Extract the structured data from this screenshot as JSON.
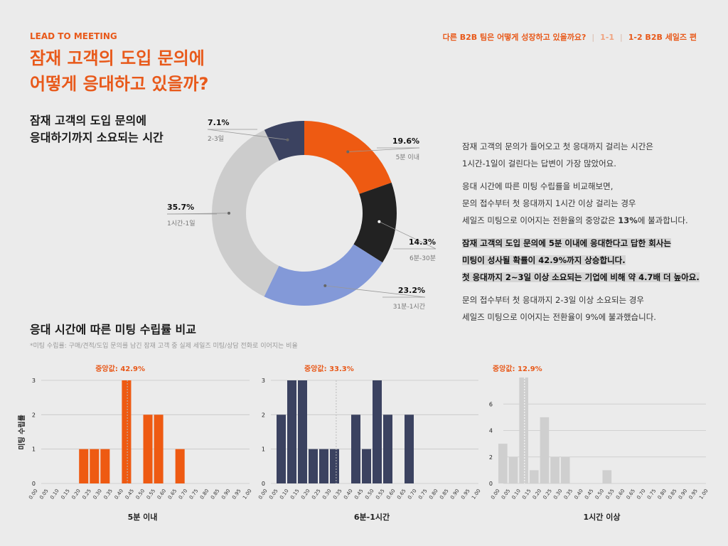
{
  "header": {
    "eyebrow": "LEAD TO MEETING",
    "nav": {
      "question": "다른 B2B 팀은 어떻게 성장하고 있을까요?",
      "part1": "1-1",
      "part2": "1-2 B2B 세일즈 편"
    },
    "title_line1": "잠재 고객의 도입 문의에",
    "title_line2": "어떻게 응대하고 있을까?"
  },
  "donut_title_line1": "잠재 고객의 도입 문의에",
  "donut_title_line2": "응대하기까지 소요되는 시간",
  "description": {
    "p1": [
      "잠재 고객의 문의가 들어오고 첫 응대까지 걸리는 시간은",
      "1시간-1일이 걸린다는 답변이 가장 많았어요."
    ],
    "p2": [
      "응대 시간에 따른 미팅 수립률을 비교해보면,",
      "문의 접수부터 첫 응대까지 1시간 이상 걸리는 경우"
    ],
    "p2_last_pre": "세일즈 미팅으로 이어지는 전환율의 중앙값은 ",
    "p2_last_bold": "13%",
    "p2_last_post": "에 불과합니다.",
    "highlight": [
      "잠재 고객의 도입 문의에 5분 이내에 응대한다고 답한 회사는",
      "미팅이 성사될 확률이 42.9%까지 상승합니다.",
      "첫 응대까지 2~3일 이상 소요되는 기업에 비해 약 4.7배 더 높아요."
    ],
    "p4": [
      "문의 접수부터 첫 응대까지 2-3일 이상 소요되는 경우",
      "세일즈 미팅으로 이어지는 전환율이 9%에 불과했습니다."
    ]
  },
  "section_title": "응대 시간에 따른 미팅 수립률 비교",
  "footnote": "*미팅 수립률: 구매/견적/도입 문의를 남긴 잠재 고객 중 실제 세일즈 미팅/상담 전화로 이어지는 비율",
  "chart_data": [
    {
      "type": "pie",
      "donut": true,
      "slices": [
        {
          "label": "5분 이내",
          "value": 19.6,
          "display": "19.6%",
          "color": "#ee5a12"
        },
        {
          "label": "6분-30분",
          "value": 14.3,
          "display": "14.3%",
          "color": "#222222"
        },
        {
          "label": "31분-1시간",
          "value": 23.2,
          "display": "23.2%",
          "color": "#8399d8"
        },
        {
          "label": "1시간-1일",
          "value": 35.7,
          "display": "35.7%",
          "color": "#cccccc"
        },
        {
          "label": "2-3일",
          "value": 7.1,
          "display": "7.1%",
          "color": "#3b4260"
        }
      ]
    },
    {
      "type": "bar",
      "histogram": true,
      "xlabel": "5분 이내",
      "ylabel": "미팅 수립률",
      "color": "#ee5a12",
      "median": 0.429,
      "median_label": "중앙값: 42.9%",
      "bin_width": 0.05,
      "xlim": [
        0,
        1
      ],
      "ylim": [
        0,
        3
      ],
      "yticks": [
        0,
        1,
        2,
        3
      ],
      "bins": [
        [
          0.2,
          1
        ],
        [
          0.25,
          1
        ],
        [
          0.3,
          1
        ],
        [
          0.4,
          3
        ],
        [
          0.5,
          2
        ],
        [
          0.55,
          2
        ],
        [
          0.65,
          1
        ]
      ]
    },
    {
      "type": "bar",
      "histogram": true,
      "xlabel": "6분-1시간",
      "ylabel": "",
      "color": "#3b4260",
      "median": 0.333,
      "median_label": "중앙값: 33.3%",
      "bin_width": 0.05,
      "xlim": [
        0,
        1
      ],
      "ylim": [
        0,
        3
      ],
      "yticks": [
        0,
        1,
        2,
        3
      ],
      "bins": [
        [
          0.05,
          2
        ],
        [
          0.1,
          3
        ],
        [
          0.15,
          3
        ],
        [
          0.2,
          1
        ],
        [
          0.25,
          1
        ],
        [
          0.3,
          1
        ],
        [
          0.4,
          2
        ],
        [
          0.45,
          1
        ],
        [
          0.5,
          3
        ],
        [
          0.55,
          2
        ],
        [
          0.65,
          2
        ]
      ]
    },
    {
      "type": "bar",
      "histogram": true,
      "xlabel": "1시간 이상",
      "ylabel": "",
      "color": "#cfcfcf",
      "median": 0.129,
      "median_label": "중앙값: 12.9%",
      "bin_width": 0.05,
      "xlim": [
        0,
        1
      ],
      "ylim": [
        0,
        8
      ],
      "yticks": [
        0,
        2,
        4,
        6
      ],
      "bins": [
        [
          0.0,
          3
        ],
        [
          0.05,
          2
        ],
        [
          0.1,
          8
        ],
        [
          0.15,
          1
        ],
        [
          0.2,
          5
        ],
        [
          0.25,
          2
        ],
        [
          0.3,
          2
        ],
        [
          0.5,
          1
        ]
      ]
    }
  ]
}
